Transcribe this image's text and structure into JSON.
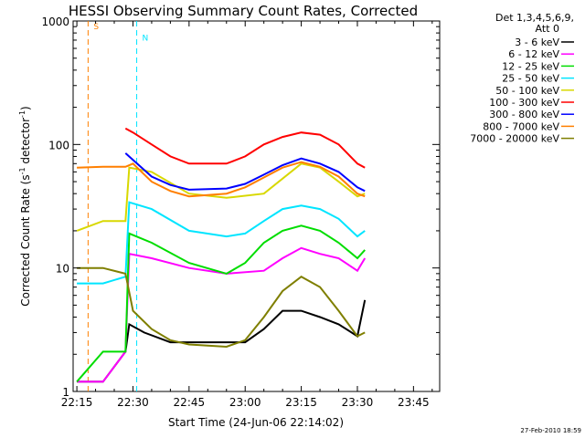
{
  "chart_data": {
    "type": "line",
    "title": "HESSI Observing Summary Count Rates, Corrected",
    "xlabel": "Start Time (24-Jun-06 22:14:02)",
    "ylabel_parts": {
      "pre": "Corrected Count Rate (s",
      "sup1": "-1",
      "mid": " detector",
      "sup2": "-1",
      "post": ")"
    },
    "y_scale": "log",
    "ylim": [
      1,
      1000
    ],
    "xlim": [
      "22:14",
      "23:52"
    ],
    "x_ticks": [
      "22:15",
      "22:30",
      "22:45",
      "23:00",
      "23:15",
      "23:30",
      "23:45"
    ],
    "y_ticks": [
      "1",
      "10",
      "100",
      "1000"
    ],
    "legend_header": [
      "Det 1,3,4,5,6,9,",
      "Att 0"
    ],
    "grid": false,
    "legend_position": "right-outside",
    "flags": [
      {
        "label": "S",
        "time": "22:18",
        "level": 800,
        "color": "#ff7f00"
      },
      {
        "label": "N",
        "time": "22:31",
        "level": 650,
        "color": "#00e5ff"
      }
    ],
    "series": [
      {
        "name": "3 - 6 keV",
        "color": "#000000",
        "times": [
          "22:15",
          "22:22",
          "22:28",
          "22:29",
          "22:33",
          "22:40",
          "22:50",
          "23:00",
          "23:05",
          "23:10",
          "23:15",
          "23:20",
          "23:25",
          "23:30",
          "23:32"
        ],
        "values": [
          1.2,
          1.2,
          2.1,
          3.5,
          3.0,
          2.5,
          2.5,
          2.5,
          3.2,
          4.5,
          4.5,
          4.0,
          3.5,
          2.8,
          5.5
        ]
      },
      {
        "name": "6 - 12 keV",
        "color": "#ff00ff",
        "times": [
          "22:15",
          "22:22",
          "22:28",
          "22:29",
          "22:35",
          "22:45",
          "22:55",
          "23:05",
          "23:10",
          "23:15",
          "23:20",
          "23:25",
          "23:30",
          "23:32"
        ],
        "values": [
          1.2,
          1.2,
          2.1,
          13,
          12,
          10,
          9,
          9.5,
          12,
          14.5,
          13,
          12,
          9.5,
          12
        ]
      },
      {
        "name": "12 - 25 keV",
        "color": "#00dd00",
        "times": [
          "22:15",
          "22:22",
          "22:28",
          "22:29",
          "22:35",
          "22:45",
          "22:55",
          "23:00",
          "23:05",
          "23:10",
          "23:15",
          "23:20",
          "23:25",
          "23:30",
          "23:32"
        ],
        "values": [
          1.2,
          2.1,
          2.1,
          19,
          16,
          11,
          9,
          11,
          16,
          20,
          22,
          20,
          16,
          12,
          14
        ]
      },
      {
        "name": "25 - 50 keV",
        "color": "#00e5ff",
        "times": [
          "22:15",
          "22:22",
          "22:28",
          "22:29",
          "22:35",
          "22:45",
          "22:55",
          "23:00",
          "23:05",
          "23:10",
          "23:15",
          "23:20",
          "23:25",
          "23:30",
          "23:32"
        ],
        "values": [
          7.5,
          7.5,
          8.5,
          34,
          30,
          20,
          18,
          19,
          24,
          30,
          32,
          30,
          25,
          18,
          20
        ]
      },
      {
        "name": "50 - 100 keV",
        "color": "#d8d800",
        "times": [
          "22:15",
          "22:22",
          "22:28",
          "22:29",
          "22:35",
          "22:45",
          "22:55",
          "23:05",
          "23:15",
          "23:20",
          "23:25",
          "23:30",
          "23:32"
        ],
        "values": [
          20,
          24,
          24,
          65,
          60,
          40,
          37,
          40,
          70,
          65,
          50,
          38,
          40
        ]
      },
      {
        "name": "100 - 300 keV",
        "color": "#ff0000",
        "times": [
          "22:28",
          "22:30",
          "22:35",
          "22:40",
          "22:45",
          "22:55",
          "23:00",
          "23:05",
          "23:10",
          "23:15",
          "23:20",
          "23:25",
          "23:30",
          "23:32"
        ],
        "values": [
          135,
          125,
          100,
          80,
          70,
          70,
          80,
          100,
          115,
          125,
          120,
          100,
          70,
          65
        ]
      },
      {
        "name": "300 - 800 keV",
        "color": "#0000ff",
        "times": [
          "22:28",
          "22:30",
          "22:35",
          "22:40",
          "22:45",
          "22:55",
          "23:00",
          "23:05",
          "23:10",
          "23:15",
          "23:20",
          "23:25",
          "23:30",
          "23:32"
        ],
        "values": [
          85,
          75,
          55,
          47,
          43,
          44,
          48,
          57,
          68,
          77,
          70,
          60,
          45,
          42
        ]
      },
      {
        "name": "800 - 7000 keV",
        "color": "#ff7f00",
        "times": [
          "22:15",
          "22:22",
          "22:28",
          "22:30",
          "22:35",
          "22:40",
          "22:45",
          "22:55",
          "23:00",
          "23:05",
          "23:10",
          "23:15",
          "23:20",
          "23:25",
          "23:30",
          "23:32"
        ],
        "values": [
          65,
          66,
          66,
          70,
          50,
          42,
          38,
          40,
          45,
          54,
          65,
          72,
          66,
          55,
          40,
          38
        ]
      },
      {
        "name": "7000 - 20000 keV",
        "color": "#7f7f00",
        "times": [
          "22:15",
          "22:22",
          "22:28",
          "22:30",
          "22:35",
          "22:40",
          "22:45",
          "22:55",
          "23:00",
          "23:05",
          "23:10",
          "23:15",
          "23:20",
          "23:25",
          "23:30",
          "23:32"
        ],
        "values": [
          10,
          10,
          9,
          4.5,
          3.2,
          2.6,
          2.4,
          2.3,
          2.6,
          4.0,
          6.5,
          8.5,
          7.0,
          4.5,
          2.8,
          3.0
        ]
      }
    ]
  },
  "footer": {
    "stamp": "27-Feb-2010 18:59"
  }
}
